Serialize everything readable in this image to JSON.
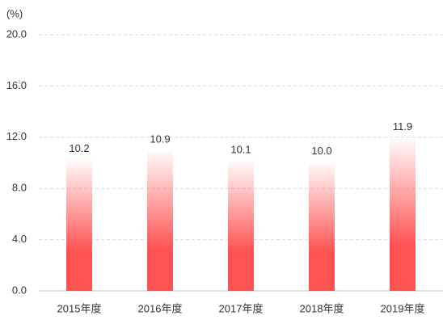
{
  "chart_data": {
    "type": "bar",
    "unit_label": "(%)",
    "categories": [
      "2015年度",
      "2016年度",
      "2017年度",
      "2018年度",
      "2019年度"
    ],
    "values": [
      10.2,
      10.9,
      10.1,
      10.0,
      11.9
    ],
    "value_labels": [
      "10.2",
      "10.9",
      "10.1",
      "10.0",
      "11.9"
    ],
    "color": "#ff5252",
    "ylim": [
      0,
      20
    ],
    "yticks": [
      {
        "value": 0,
        "label": "0.0"
      },
      {
        "value": 4,
        "label": "4.0"
      },
      {
        "value": 8,
        "label": "8.0"
      },
      {
        "value": 12,
        "label": "12.0"
      },
      {
        "value": 16,
        "label": "16.0"
      },
      {
        "value": 20,
        "label": "20.0"
      }
    ],
    "grid": true
  }
}
